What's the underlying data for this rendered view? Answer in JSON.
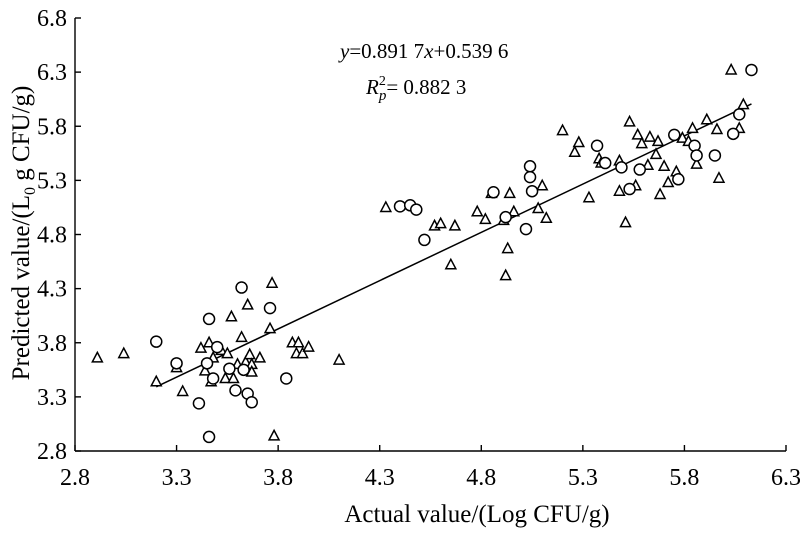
{
  "chart_data": {
    "type": "scatter",
    "xlabel": "Actual value/(Log CFU/g)",
    "ylabel_parts": {
      "pre": "Predicted value/(L",
      "sub": "0",
      "post": " g CFU/g)"
    },
    "xlim": [
      2.8,
      6.3
    ],
    "ylim": [
      2.8,
      6.8
    ],
    "x_ticks": [
      "2.8",
      "3.3",
      "3.8",
      "4.3",
      "4.8",
      "5.3",
      "5.8",
      "6.3"
    ],
    "y_ticks": [
      "2.8",
      "3.3",
      "3.8",
      "4.3",
      "4.8",
      "5.3",
      "5.8",
      "6.3",
      "6.8"
    ],
    "grid": false,
    "annotations": {
      "equation": {
        "y": "y",
        "a": "=0.891 7",
        "x": "x",
        "b": "+0.539 6"
      },
      "r2": {
        "R": "R",
        "sup": "2",
        "sub": "p",
        "value": "= 0.882 3"
      }
    },
    "fit_line": {
      "slope": 0.8917,
      "intercept": 0.5396,
      "x_range": [
        3.2,
        6.13
      ]
    },
    "series": [
      {
        "marker": "triangle",
        "points": [
          [
            2.91,
            3.66
          ],
          [
            3.04,
            3.7
          ],
          [
            3.2,
            3.44
          ],
          [
            3.3,
            3.57
          ],
          [
            3.33,
            3.35
          ],
          [
            3.42,
            3.75
          ],
          [
            3.44,
            3.54
          ],
          [
            3.46,
            3.8
          ],
          [
            3.47,
            3.44
          ],
          [
            3.48,
            3.66
          ],
          [
            3.52,
            3.73
          ],
          [
            3.54,
            3.47
          ],
          [
            3.55,
            3.7
          ],
          [
            3.57,
            4.04
          ],
          [
            3.58,
            3.47
          ],
          [
            3.6,
            3.6
          ],
          [
            3.62,
            3.85
          ],
          [
            3.64,
            3.62
          ],
          [
            3.65,
            4.15
          ],
          [
            3.66,
            3.69
          ],
          [
            3.67,
            3.6
          ],
          [
            3.67,
            3.53
          ],
          [
            3.71,
            3.66
          ],
          [
            3.76,
            3.93
          ],
          [
            3.77,
            4.35
          ],
          [
            3.78,
            2.94
          ],
          [
            3.87,
            3.8
          ],
          [
            3.89,
            3.7
          ],
          [
            3.9,
            3.8
          ],
          [
            3.92,
            3.7
          ],
          [
            3.95,
            3.76
          ],
          [
            4.1,
            3.64
          ],
          [
            4.33,
            5.05
          ],
          [
            4.57,
            4.88
          ],
          [
            4.6,
            4.9
          ],
          [
            4.65,
            4.52
          ],
          [
            4.67,
            4.88
          ],
          [
            4.78,
            5.01
          ],
          [
            4.82,
            4.94
          ],
          [
            4.85,
            5.18
          ],
          [
            4.91,
            4.93
          ],
          [
            4.92,
            4.42
          ],
          [
            4.93,
            4.67
          ],
          [
            4.94,
            5.18
          ],
          [
            4.96,
            5.01
          ],
          [
            5.08,
            5.04
          ],
          [
            5.1,
            5.25
          ],
          [
            5.12,
            4.95
          ],
          [
            5.2,
            5.76
          ],
          [
            5.26,
            5.56
          ],
          [
            5.28,
            5.65
          ],
          [
            5.33,
            5.14
          ],
          [
            5.38,
            5.5
          ],
          [
            5.39,
            5.46
          ],
          [
            5.48,
            5.2
          ],
          [
            5.48,
            5.48
          ],
          [
            5.51,
            4.91
          ],
          [
            5.53,
            5.84
          ],
          [
            5.56,
            5.25
          ],
          [
            5.57,
            5.72
          ],
          [
            5.59,
            5.64
          ],
          [
            5.62,
            5.44
          ],
          [
            5.63,
            5.7
          ],
          [
            5.66,
            5.54
          ],
          [
            5.67,
            5.66
          ],
          [
            5.68,
            5.17
          ],
          [
            5.7,
            5.43
          ],
          [
            5.72,
            5.28
          ],
          [
            5.76,
            5.38
          ],
          [
            5.79,
            5.69
          ],
          [
            5.82,
            5.66
          ],
          [
            5.84,
            5.78
          ],
          [
            5.86,
            5.45
          ],
          [
            5.91,
            5.86
          ],
          [
            5.96,
            5.77
          ],
          [
            5.97,
            5.32
          ],
          [
            6.03,
            6.32
          ],
          [
            6.07,
            5.78
          ],
          [
            6.09,
            6.0
          ]
        ]
      },
      {
        "marker": "circle",
        "points": [
          [
            3.2,
            3.81
          ],
          [
            3.3,
            3.61
          ],
          [
            3.41,
            3.24
          ],
          [
            3.45,
            3.61
          ],
          [
            3.46,
            4.02
          ],
          [
            3.46,
            2.93
          ],
          [
            3.48,
            3.47
          ],
          [
            3.5,
            3.76
          ],
          [
            3.56,
            3.56
          ],
          [
            3.59,
            3.36
          ],
          [
            3.62,
            4.31
          ],
          [
            3.63,
            3.55
          ],
          [
            3.65,
            3.33
          ],
          [
            3.67,
            3.25
          ],
          [
            3.76,
            4.12
          ],
          [
            3.84,
            3.47
          ],
          [
            4.4,
            5.06
          ],
          [
            4.45,
            5.07
          ],
          [
            4.48,
            5.03
          ],
          [
            4.52,
            4.75
          ],
          [
            4.86,
            5.19
          ],
          [
            4.92,
            4.96
          ],
          [
            5.02,
            4.85
          ],
          [
            5.04,
            5.33
          ],
          [
            5.04,
            5.43
          ],
          [
            5.05,
            5.2
          ],
          [
            5.37,
            5.62
          ],
          [
            5.41,
            5.46
          ],
          [
            5.49,
            5.42
          ],
          [
            5.53,
            5.22
          ],
          [
            5.58,
            5.4
          ],
          [
            5.75,
            5.72
          ],
          [
            5.77,
            5.31
          ],
          [
            5.85,
            5.62
          ],
          [
            5.86,
            5.53
          ],
          [
            5.95,
            5.53
          ],
          [
            6.04,
            5.73
          ],
          [
            6.07,
            5.91
          ],
          [
            6.13,
            6.32
          ]
        ]
      }
    ]
  }
}
